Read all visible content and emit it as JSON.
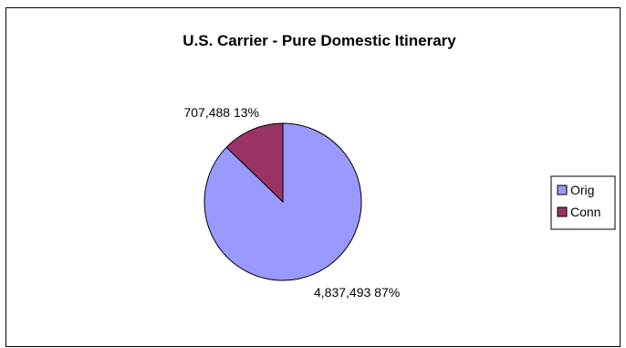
{
  "chart_data": {
    "type": "pie",
    "title": "U.S. Carrier - Pure Domestic Itinerary",
    "categories": [
      "Orig",
      "Conn"
    ],
    "values": [
      4837493,
      707488
    ],
    "value_labels": [
      "4,837,493",
      "707,488"
    ],
    "percent_labels": [
      "87%",
      "13%"
    ],
    "colors": [
      "#9999ff",
      "#993366"
    ],
    "legend_position": "right",
    "start_angle": "12 o'clock"
  }
}
